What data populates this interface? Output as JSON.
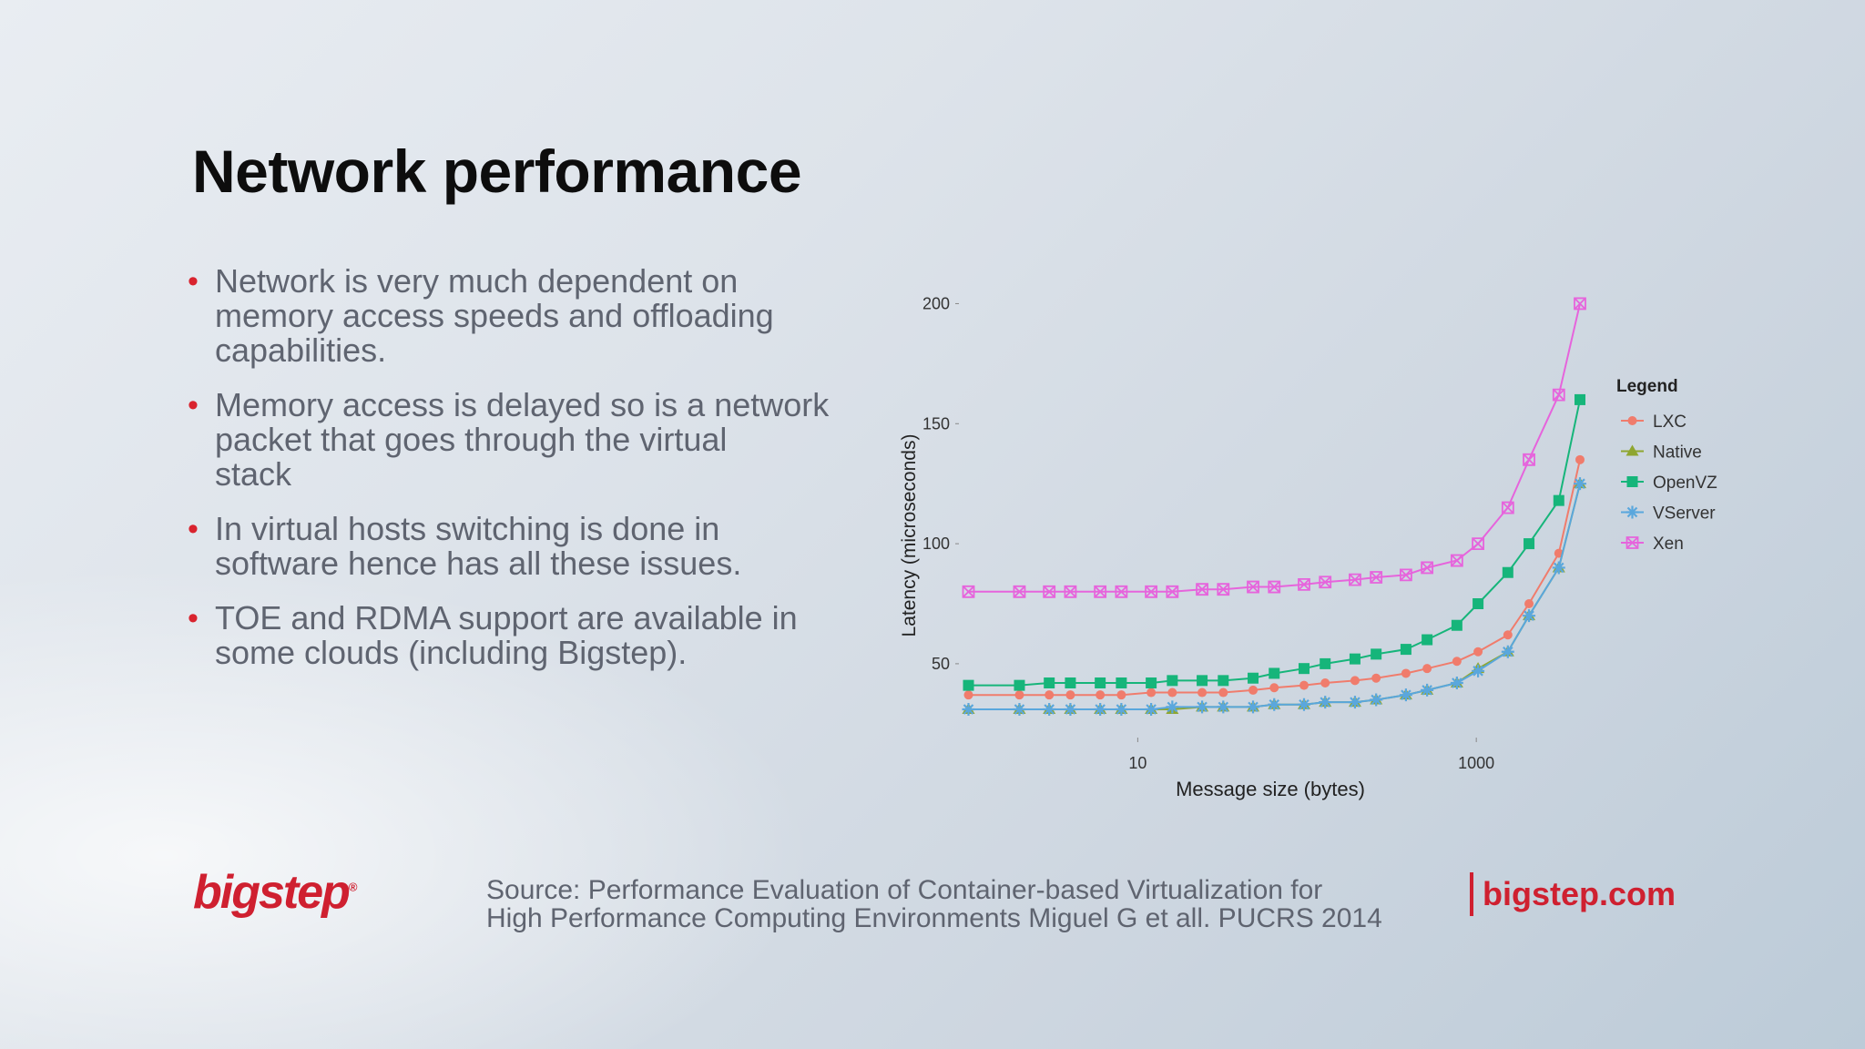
{
  "slide": {
    "title": "Network performance",
    "bullets": [
      {
        "lines": [
          "Network is very much dependent on",
          "memory access speeds and offloading",
          "capabilities."
        ]
      },
      {
        "lines": [
          "Memory access is delayed so is a network",
          "packet that goes through the virtual",
          "stack"
        ]
      },
      {
        "lines": [
          "In virtual hosts switching is done in",
          "software hence has all these issues."
        ]
      },
      {
        "lines": [
          "TOE and RDMA support are available in",
          "some clouds (including Bigstep)."
        ]
      }
    ],
    "logo": "bigstep",
    "logo_mark": "®",
    "source_lines": [
      "Source: Performance Evaluation of Container-based Virtualization for",
      "High Performance Computing Environments Miguel G et all. PUCRS 2014"
    ],
    "website": "bigstep.com",
    "colors": {
      "accent": "#cf2030",
      "text": "#5f6470",
      "title": "#0d0d0d"
    }
  },
  "chart_data": {
    "type": "line",
    "xlabel": "Message size (bytes)",
    "ylabel": "Latency (microseconds)",
    "xscale": "log",
    "xlim": [
      0.9,
      4096
    ],
    "ylim": [
      20,
      240
    ],
    "x_ticks": [
      10,
      1000
    ],
    "x_tick_labels": [
      "10",
      "1000"
    ],
    "y_ticks": [
      50,
      100,
      150,
      200
    ],
    "y_tick_labels": [
      "50",
      "100",
      "150",
      "200"
    ],
    "grid": false,
    "legend_title": "Legend",
    "legend_position": "right",
    "x": [
      1,
      2,
      3,
      4,
      6,
      8,
      12,
      16,
      24,
      32,
      48,
      64,
      96,
      128,
      192,
      256,
      384,
      512,
      768,
      1024,
      1536,
      2048,
      3072,
      4096
    ],
    "series": [
      {
        "name": "LXC",
        "color": "#f07c6c",
        "marker": "circle",
        "values": [
          37,
          37,
          37,
          37,
          37,
          37,
          38,
          38,
          38,
          38,
          39,
          40,
          41,
          42,
          43,
          44,
          46,
          48,
          51,
          55,
          62,
          75,
          96,
          135
        ]
      },
      {
        "name": "Native",
        "color": "#8fa630",
        "marker": "triangle",
        "values": [
          31,
          31,
          31,
          31,
          31,
          31,
          31,
          31,
          32,
          32,
          32,
          33,
          33,
          34,
          34,
          35,
          37,
          39,
          42,
          48,
          55,
          70,
          90,
          125
        ]
      },
      {
        "name": "OpenVZ",
        "color": "#16b57a",
        "marker": "square",
        "values": [
          41,
          41,
          42,
          42,
          42,
          42,
          42,
          43,
          43,
          43,
          44,
          46,
          48,
          50,
          52,
          54,
          56,
          60,
          66,
          75,
          88,
          100,
          118,
          160
        ]
      },
      {
        "name": "VServer",
        "color": "#5aa7dd",
        "marker": "star",
        "values": [
          31,
          31,
          31,
          31,
          31,
          31,
          31,
          32,
          32,
          32,
          32,
          33,
          33,
          34,
          34,
          35,
          37,
          39,
          42,
          47,
          55,
          70,
          90,
          125
        ]
      },
      {
        "name": "Xen",
        "color": "#e664dc",
        "marker": "boxed-x",
        "values": [
          80,
          80,
          80,
          80,
          80,
          80,
          80,
          80,
          81,
          81,
          82,
          82,
          83,
          84,
          85,
          86,
          87,
          90,
          93,
          100,
          115,
          135,
          162,
          200
        ]
      }
    ]
  }
}
